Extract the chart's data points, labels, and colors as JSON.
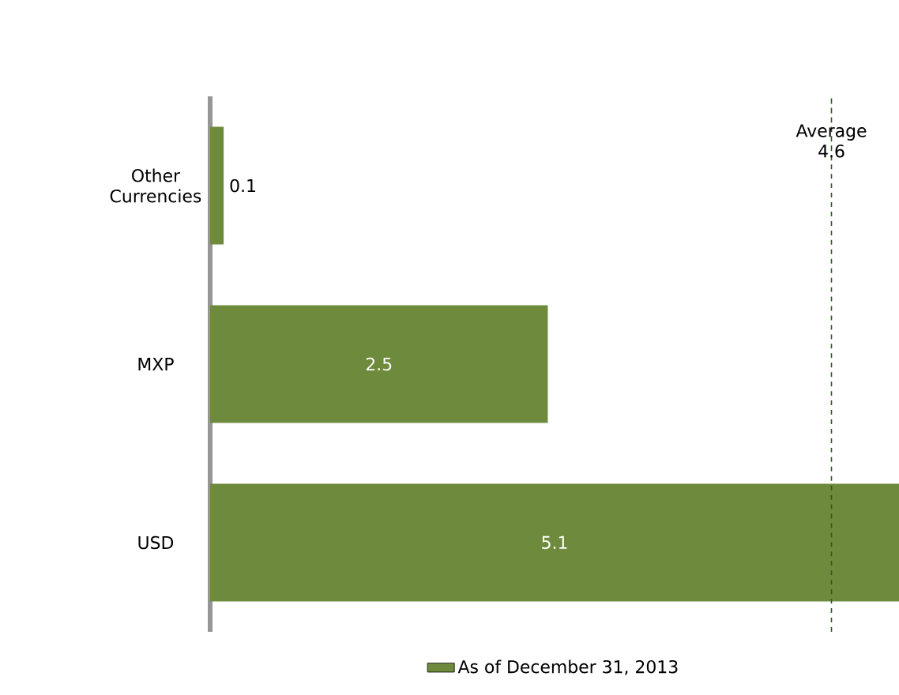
{
  "chart_data": {
    "type": "bar",
    "orientation": "horizontal",
    "categories": [
      "Other Currencies",
      "MXP",
      "USD"
    ],
    "series": [
      {
        "name": "As of December 31, 2013",
        "color": "#6e8b3d",
        "values": [
          0.1,
          2.5,
          5.1
        ]
      }
    ],
    "xlim": [
      0,
      5.1
    ],
    "data_labels": true,
    "legend": "bottom",
    "tick_labels": "y",
    "ref_lines": [
      {
        "axis": "x",
        "value": 4.6,
        "label": "Average 4.6",
        "color": "#2e5a22",
        "line_style": "dashed"
      }
    ]
  }
}
